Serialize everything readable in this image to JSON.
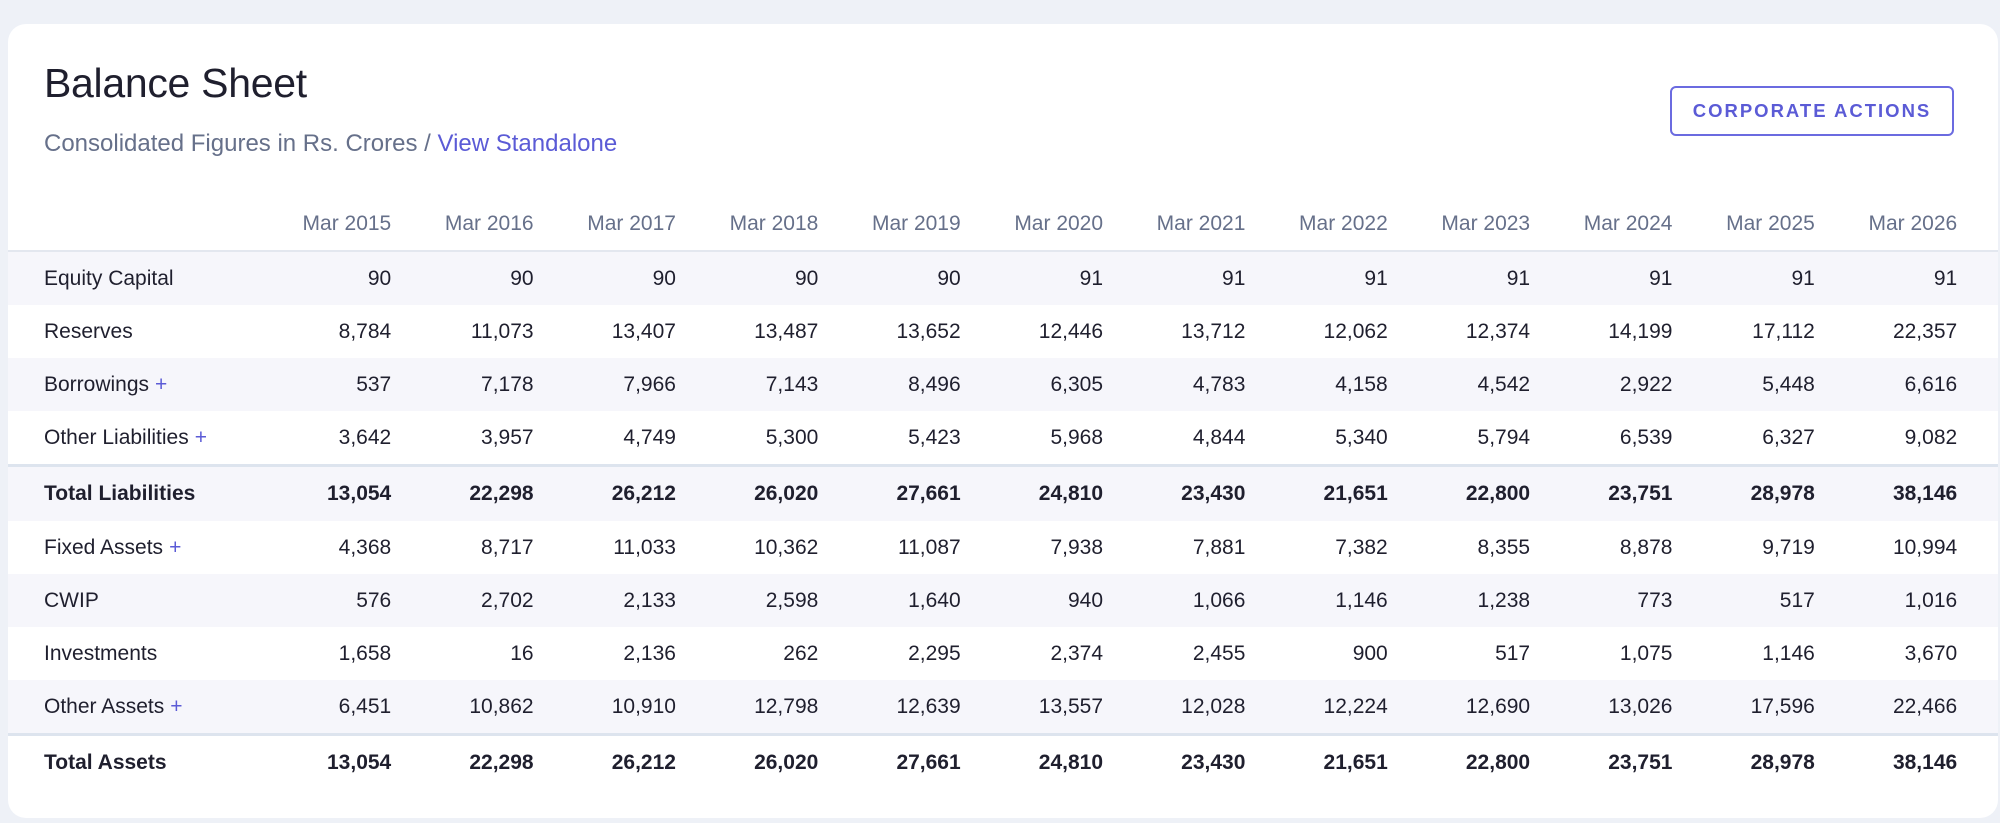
{
  "header": {
    "title": "Balance Sheet",
    "subtitle_prefix": "Consolidated Figures in Rs. Crores / ",
    "view_standalone": "View Standalone",
    "corporate_actions": "CORPORATE ACTIONS"
  },
  "table": {
    "columns": [
      "Mar 2015",
      "Mar 2016",
      "Mar 2017",
      "Mar 2018",
      "Mar 2019",
      "Mar 2020",
      "Mar 2021",
      "Mar 2022",
      "Mar 2023",
      "Mar 2024",
      "Mar 2025",
      "Mar 2026"
    ],
    "rows": [
      {
        "label": "Equity Capital",
        "expandable": false,
        "total": false,
        "values": [
          "90",
          "90",
          "90",
          "90",
          "90",
          "91",
          "91",
          "91",
          "91",
          "91",
          "91",
          "91"
        ]
      },
      {
        "label": "Reserves",
        "expandable": false,
        "total": false,
        "values": [
          "8,784",
          "11,073",
          "13,407",
          "13,487",
          "13,652",
          "12,446",
          "13,712",
          "12,062",
          "12,374",
          "14,199",
          "17,112",
          "22,357"
        ]
      },
      {
        "label": "Borrowings",
        "expandable": true,
        "total": false,
        "values": [
          "537",
          "7,178",
          "7,966",
          "7,143",
          "8,496",
          "6,305",
          "4,783",
          "4,158",
          "4,542",
          "2,922",
          "5,448",
          "6,616"
        ]
      },
      {
        "label": "Other Liabilities",
        "expandable": true,
        "total": false,
        "values": [
          "3,642",
          "3,957",
          "4,749",
          "5,300",
          "5,423",
          "5,968",
          "4,844",
          "5,340",
          "5,794",
          "6,539",
          "6,327",
          "9,082"
        ]
      },
      {
        "label": "Total Liabilities",
        "expandable": false,
        "total": true,
        "values": [
          "13,054",
          "22,298",
          "26,212",
          "26,020",
          "27,661",
          "24,810",
          "23,430",
          "21,651",
          "22,800",
          "23,751",
          "28,978",
          "38,146"
        ]
      },
      {
        "label": "Fixed Assets",
        "expandable": true,
        "total": false,
        "values": [
          "4,368",
          "8,717",
          "11,033",
          "10,362",
          "11,087",
          "7,938",
          "7,881",
          "7,382",
          "8,355",
          "8,878",
          "9,719",
          "10,994"
        ]
      },
      {
        "label": "CWIP",
        "expandable": false,
        "total": false,
        "values": [
          "576",
          "2,702",
          "2,133",
          "2,598",
          "1,640",
          "940",
          "1,066",
          "1,146",
          "1,238",
          "773",
          "517",
          "1,016"
        ]
      },
      {
        "label": "Investments",
        "expandable": false,
        "total": false,
        "values": [
          "1,658",
          "16",
          "2,136",
          "262",
          "2,295",
          "2,374",
          "2,455",
          "900",
          "517",
          "1,075",
          "1,146",
          "3,670"
        ]
      },
      {
        "label": "Other Assets",
        "expandable": true,
        "total": false,
        "values": [
          "6,451",
          "10,862",
          "10,910",
          "12,798",
          "12,639",
          "13,557",
          "12,028",
          "12,224",
          "12,690",
          "13,026",
          "17,596",
          "22,466"
        ]
      },
      {
        "label": "Total Assets",
        "expandable": false,
        "total": true,
        "values": [
          "13,054",
          "22,298",
          "26,212",
          "26,020",
          "27,661",
          "24,810",
          "23,430",
          "21,651",
          "22,800",
          "23,751",
          "28,978",
          "38,146"
        ]
      }
    ],
    "expand_symbol": "+"
  },
  "colors": {
    "accent": "#5b5bd6",
    "muted_text": "#66708a",
    "row_stripe": "#f6f6fb",
    "page_bg": "#eef1f7"
  }
}
